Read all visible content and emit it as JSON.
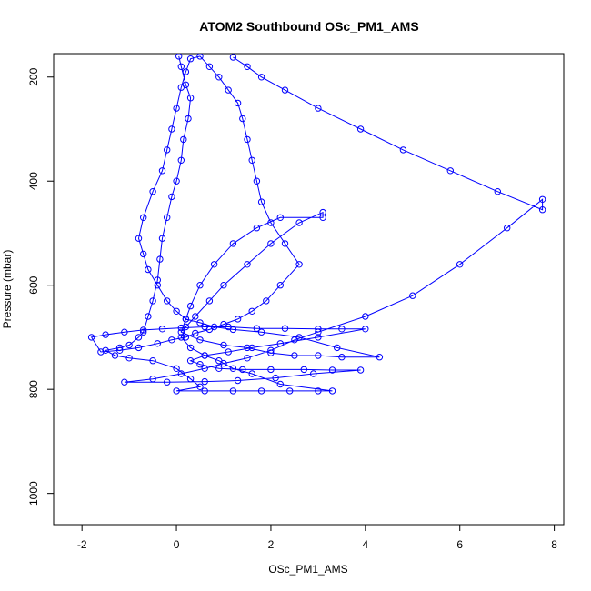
{
  "chart_data": {
    "type": "scatter",
    "title": "ATOM2 Southbound OSc_PM1_AMS",
    "xlabel": "OSc_PM1_AMS",
    "ylabel": "Pressure (mbar)",
    "xlim": [
      -2.6,
      8.2
    ],
    "ylim": [
      1060,
      155
    ],
    "y_reversed": true,
    "x_ticks": [
      -2,
      0,
      2,
      4,
      6,
      8
    ],
    "y_ticks": [
      200,
      400,
      600,
      800,
      1000
    ],
    "grid": false,
    "legend": "none",
    "colors": {
      "series": "#0000ff",
      "axis": "#000000",
      "background": "#ffffff"
    },
    "series": [
      {
        "points": [
          [
            0.05,
            160
          ],
          [
            0.1,
            180
          ],
          [
            0.2,
            215
          ],
          [
            0.3,
            240
          ],
          [
            0.25,
            280
          ],
          [
            0.15,
            320
          ],
          [
            0.1,
            360
          ],
          [
            0.0,
            400
          ],
          [
            -0.1,
            430
          ],
          [
            -0.2,
            470
          ],
          [
            -0.3,
            510
          ],
          [
            -0.35,
            550
          ],
          [
            -0.4,
            590
          ],
          [
            -0.5,
            630
          ],
          [
            -0.6,
            660
          ],
          [
            -0.7,
            690
          ],
          [
            -0.8,
            700
          ],
          [
            -1.0,
            715
          ],
          [
            -1.2,
            720
          ],
          [
            -1.5,
            725
          ],
          [
            -1.3,
            735
          ],
          [
            -1.0,
            740
          ],
          [
            -0.5,
            745
          ],
          [
            0.0,
            760
          ],
          [
            0.3,
            780
          ],
          [
            0.5,
            795
          ],
          [
            0.0,
            803
          ],
          [
            0.6,
            803
          ],
          [
            1.2,
            803
          ],
          [
            1.8,
            803
          ],
          [
            2.4,
            803
          ],
          [
            3.0,
            803
          ],
          [
            3.3,
            803
          ],
          [
            2.2,
            790
          ],
          [
            1.6,
            770
          ],
          [
            1.2,
            760
          ],
          [
            0.9,
            745
          ],
          [
            0.6,
            735
          ],
          [
            0.3,
            720
          ],
          [
            0.1,
            700
          ],
          [
            0.2,
            680
          ],
          [
            0.4,
            660
          ],
          [
            0.7,
            630
          ],
          [
            1.0,
            600
          ],
          [
            1.5,
            560
          ],
          [
            2.0,
            520
          ],
          [
            2.6,
            480
          ],
          [
            3.1,
            460
          ],
          [
            3.1,
            470
          ],
          [
            2.2,
            470
          ],
          [
            1.7,
            490
          ],
          [
            1.2,
            520
          ],
          [
            0.8,
            560
          ],
          [
            0.5,
            600
          ],
          [
            0.3,
            640
          ],
          [
            0.2,
            665
          ],
          [
            0.1,
            690
          ],
          [
            0.5,
            705
          ],
          [
            1.0,
            715
          ],
          [
            1.5,
            720
          ],
          [
            2.0,
            730
          ],
          [
            2.5,
            735
          ],
          [
            3.0,
            735
          ],
          [
            3.5,
            738
          ],
          [
            4.3,
            738
          ],
          [
            3.4,
            720
          ],
          [
            2.6,
            700
          ],
          [
            1.8,
            690
          ],
          [
            1.2,
            685
          ],
          [
            0.8,
            680
          ],
          [
            0.5,
            672
          ],
          [
            0.2,
            665
          ],
          [
            0.0,
            650
          ],
          [
            -0.2,
            630
          ],
          [
            -0.4,
            600
          ],
          [
            -0.6,
            570
          ],
          [
            -0.7,
            540
          ],
          [
            -0.8,
            510
          ],
          [
            -0.7,
            470
          ],
          [
            -0.5,
            420
          ],
          [
            -0.3,
            380
          ],
          [
            -0.2,
            340
          ],
          [
            -0.1,
            300
          ],
          [
            0.0,
            260
          ],
          [
            0.1,
            220
          ],
          [
            0.2,
            190
          ],
          [
            0.3,
            165
          ],
          [
            0.5,
            160
          ],
          [
            0.7,
            180
          ],
          [
            0.9,
            200
          ],
          [
            1.1,
            225
          ],
          [
            1.3,
            250
          ],
          [
            1.4,
            280
          ],
          [
            1.5,
            320
          ],
          [
            1.6,
            360
          ],
          [
            1.7,
            400
          ],
          [
            1.8,
            440
          ],
          [
            2.0,
            480
          ],
          [
            2.3,
            520
          ],
          [
            2.6,
            560
          ],
          [
            2.2,
            600
          ],
          [
            1.9,
            630
          ],
          [
            1.6,
            650
          ],
          [
            1.3,
            665
          ],
          [
            1.0,
            675
          ],
          [
            0.7,
            685
          ],
          [
            0.4,
            692
          ],
          [
            0.2,
            700
          ],
          [
            -0.1,
            705
          ],
          [
            -0.4,
            712
          ],
          [
            -0.8,
            720
          ],
          [
            -1.2,
            725
          ],
          [
            -1.6,
            728
          ],
          [
            -1.8,
            700
          ],
          [
            -1.5,
            695
          ],
          [
            -1.1,
            690
          ],
          [
            -0.7,
            686
          ],
          [
            -0.3,
            684
          ],
          [
            0.1,
            682
          ],
          [
            0.6,
            680
          ],
          [
            1.1,
            680
          ],
          [
            1.7,
            683
          ],
          [
            2.3,
            683
          ],
          [
            3.0,
            684
          ],
          [
            3.5,
            684
          ],
          [
            4.0,
            684
          ],
          [
            3.0,
            700
          ],
          [
            2.2,
            712
          ],
          [
            1.6,
            720
          ],
          [
            1.1,
            728
          ],
          [
            0.6,
            735
          ],
          [
            0.3,
            745
          ],
          [
            0.5,
            752
          ],
          [
            0.9,
            760
          ],
          [
            1.4,
            762
          ],
          [
            2.0,
            762
          ],
          [
            2.7,
            762
          ],
          [
            3.3,
            763
          ],
          [
            3.9,
            763
          ],
          [
            2.9,
            770
          ],
          [
            2.1,
            778
          ],
          [
            1.3,
            783
          ],
          [
            0.6,
            785
          ],
          [
            -0.2,
            786
          ],
          [
            -1.1,
            786
          ],
          [
            -0.5,
            780
          ],
          [
            0.1,
            770
          ],
          [
            0.6,
            760
          ],
          [
            1.0,
            750
          ],
          [
            1.5,
            740
          ],
          [
            2.0,
            725
          ],
          [
            2.5,
            705
          ],
          [
            3.0,
            690
          ],
          [
            4.0,
            660
          ],
          [
            5.0,
            620
          ],
          [
            6.0,
            560
          ],
          [
            7.0,
            490
          ],
          [
            7.75,
            435
          ],
          [
            7.75,
            455
          ],
          [
            6.8,
            420
          ],
          [
            5.8,
            380
          ],
          [
            4.8,
            340
          ],
          [
            3.9,
            300
          ],
          [
            3.0,
            260
          ],
          [
            2.3,
            225
          ],
          [
            1.8,
            200
          ],
          [
            1.5,
            180
          ],
          [
            1.2,
            162
          ]
        ]
      }
    ]
  }
}
